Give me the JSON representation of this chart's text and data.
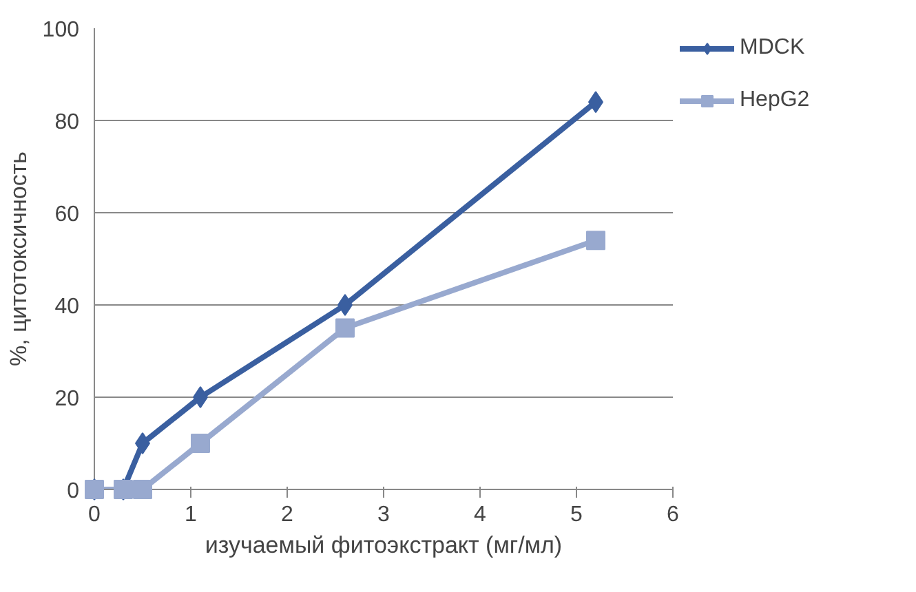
{
  "chart_data": {
    "type": "line",
    "xlabel": "изучаемый фитоэкстракт (мг/мл)",
    "ylabel": "%, цитотоксичность",
    "xlim": [
      0,
      6
    ],
    "xticks": [
      0,
      1,
      2,
      3,
      4,
      5,
      6
    ],
    "ylim": [
      0,
      100
    ],
    "yticks": [
      0,
      20,
      40,
      60,
      80,
      100
    ],
    "grid": "y",
    "legend": "right",
    "series": [
      {
        "name": "MDCK",
        "color": "#3a5fa0",
        "marker": "diamond",
        "x": [
          0,
          0.3,
          0.5,
          1.1,
          2.6,
          5.2
        ],
        "values": [
          0,
          0,
          10,
          20,
          40,
          84
        ]
      },
      {
        "name": "HepG2",
        "color": "#98a9cf",
        "marker": "square",
        "x": [
          0,
          0.3,
          0.5,
          1.1,
          2.6,
          5.2
        ],
        "values": [
          0,
          0,
          0,
          10,
          35,
          54
        ]
      }
    ]
  }
}
